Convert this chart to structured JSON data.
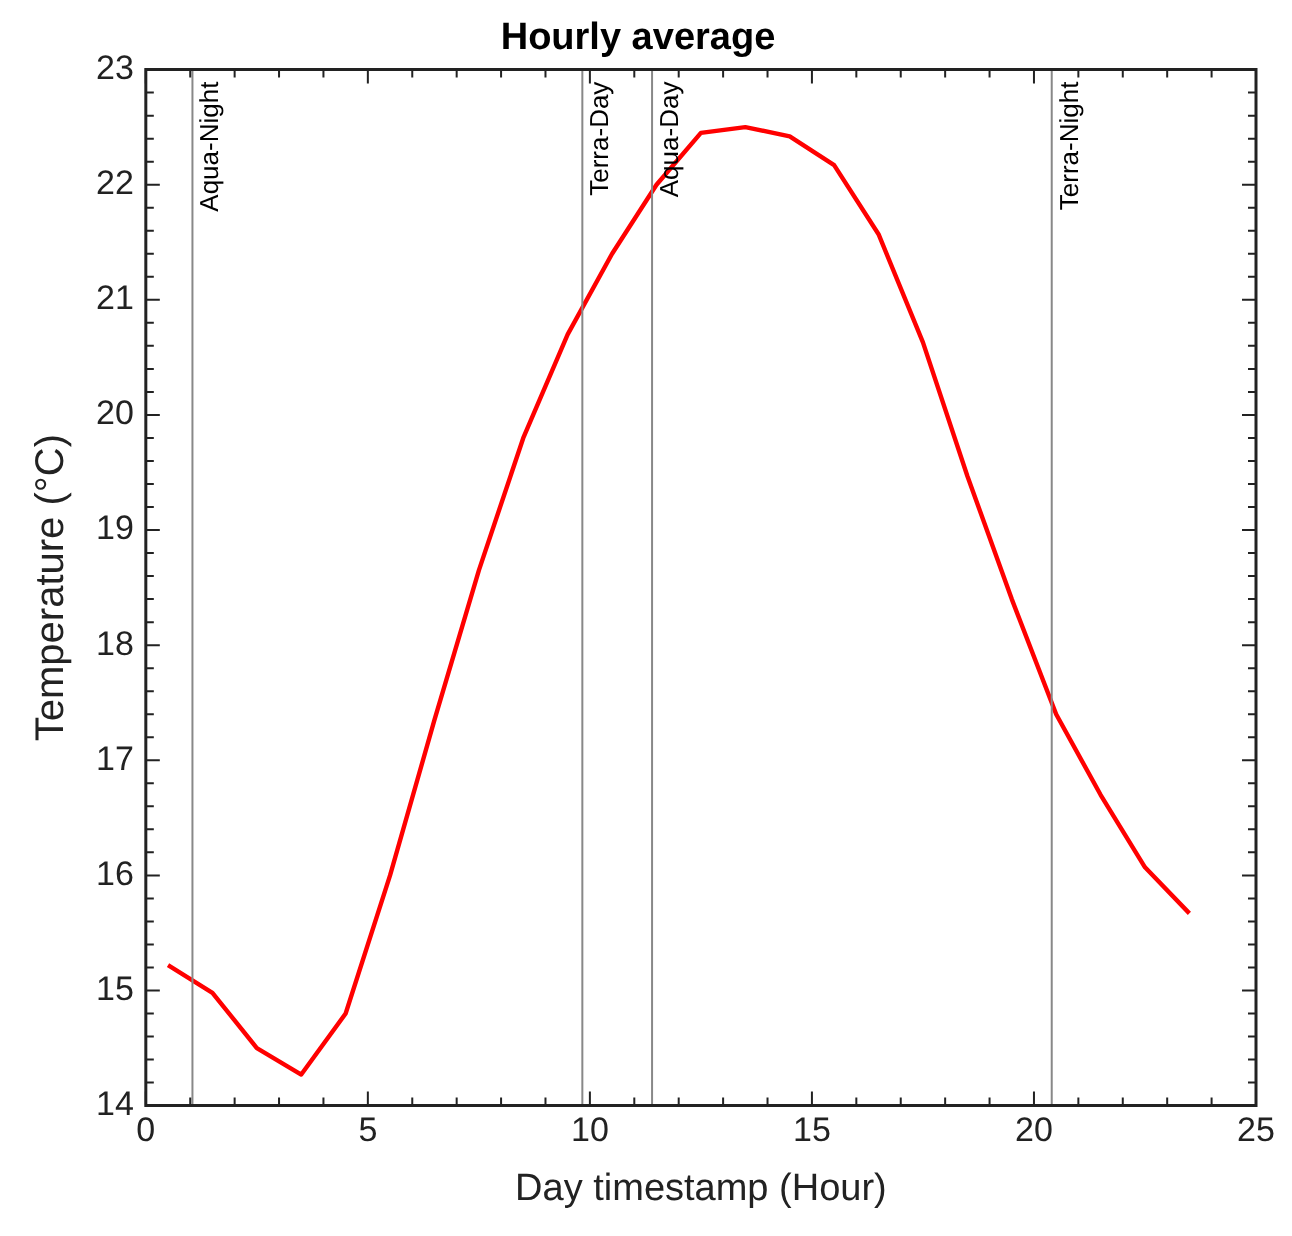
{
  "chart_data": {
    "type": "line",
    "title": "Hourly average",
    "xlabel": "Day timestamp (Hour)",
    "ylabel": "Temperature (°C)",
    "x": [
      0.5,
      1.5,
      2.5,
      3.5,
      4.5,
      5.5,
      6.5,
      7.5,
      8.5,
      9.5,
      10.5,
      11.5,
      12.5,
      13.5,
      14.5,
      15.5,
      16.5,
      17.5,
      18.5,
      19.5,
      20.5,
      21.5,
      22.5,
      23.5
    ],
    "series": [
      {
        "color": "#ff0000",
        "values": [
          15.22,
          14.98,
          14.5,
          14.27,
          14.8,
          16.0,
          17.35,
          18.65,
          19.8,
          20.7,
          21.4,
          22.0,
          22.45,
          22.5,
          22.42,
          22.17,
          21.57,
          20.63,
          19.47,
          18.4,
          17.4,
          16.7,
          16.07,
          15.67
        ]
      }
    ],
    "xlim": [
      0,
      25
    ],
    "xticks": [
      0,
      {
        "value": 1,
        "label": null
      },
      {
        "value": 2,
        "label": null
      },
      {
        "value": 3,
        "label": null
      },
      {
        "value": 4,
        "label": null
      },
      5,
      {
        "value": 6,
        "label": null
      },
      {
        "value": 7,
        "label": null
      },
      {
        "value": 8,
        "label": null
      },
      {
        "value": 9,
        "label": null
      },
      10,
      {
        "value": 11,
        "label": null
      },
      {
        "value": 12,
        "label": null
      },
      {
        "value": 13,
        "label": null
      },
      {
        "value": 14,
        "label": null
      },
      15,
      {
        "value": 16,
        "label": null
      },
      {
        "value": 17,
        "label": null
      },
      {
        "value": 18,
        "label": null
      },
      {
        "value": 19,
        "label": null
      },
      20,
      {
        "value": 21,
        "label": null
      },
      {
        "value": 22,
        "label": null
      },
      {
        "value": 23,
        "label": null
      },
      {
        "value": 24,
        "label": null
      },
      25
    ],
    "ylim": [
      14,
      23
    ],
    "yticks": [
      14,
      {
        "value": 14.2,
        "label": null
      },
      {
        "value": 14.4,
        "label": null
      },
      {
        "value": 14.6,
        "label": null
      },
      {
        "value": 14.8,
        "label": null
      },
      15,
      {
        "value": 15.2,
        "label": null
      },
      {
        "value": 15.4,
        "label": null
      },
      {
        "value": 15.6,
        "label": null
      },
      {
        "value": 15.8,
        "label": null
      },
      16,
      {
        "value": 16.2,
        "label": null
      },
      {
        "value": 16.4,
        "label": null
      },
      {
        "value": 16.6,
        "label": null
      },
      {
        "value": 16.8,
        "label": null
      },
      17,
      {
        "value": 17.2,
        "label": null
      },
      {
        "value": 17.4,
        "label": null
      },
      {
        "value": 17.6,
        "label": null
      },
      {
        "value": 17.8,
        "label": null
      },
      18,
      {
        "value": 18.2,
        "label": null
      },
      {
        "value": 18.4,
        "label": null
      },
      {
        "value": 18.6,
        "label": null
      },
      {
        "value": 18.8,
        "label": null
      },
      19,
      {
        "value": 19.2,
        "label": null
      },
      {
        "value": 19.4,
        "label": null
      },
      {
        "value": 19.6,
        "label": null
      },
      {
        "value": 19.8,
        "label": null
      },
      20,
      {
        "value": 20.2,
        "label": null
      },
      {
        "value": 20.4,
        "label": null
      },
      {
        "value": 20.6,
        "label": null
      },
      {
        "value": 20.8,
        "label": null
      },
      21,
      {
        "value": 21.2,
        "label": null
      },
      {
        "value": 21.4,
        "label": null
      },
      {
        "value": 21.6,
        "label": null
      },
      {
        "value": 21.8,
        "label": null
      },
      22,
      {
        "value": 22.2,
        "label": null
      },
      {
        "value": 22.4,
        "label": null
      },
      {
        "value": 22.6,
        "label": null
      },
      {
        "value": 22.8,
        "label": null
      },
      23
    ],
    "ref_lines": [
      {
        "axis": "x",
        "value": 1.05,
        "label": "Aqua-Night",
        "color": "#888888"
      },
      {
        "axis": "x",
        "value": 9.83,
        "label": "Terra-Day",
        "color": "#888888"
      },
      {
        "axis": "x",
        "value": 11.4,
        "label": "Aqua-Day",
        "color": "#888888"
      },
      {
        "axis": "x",
        "value": 20.4,
        "label": "Terra-Night",
        "color": "#888888"
      }
    ],
    "grid": false,
    "legend": false,
    "marker": "none",
    "line_style": "solid"
  }
}
